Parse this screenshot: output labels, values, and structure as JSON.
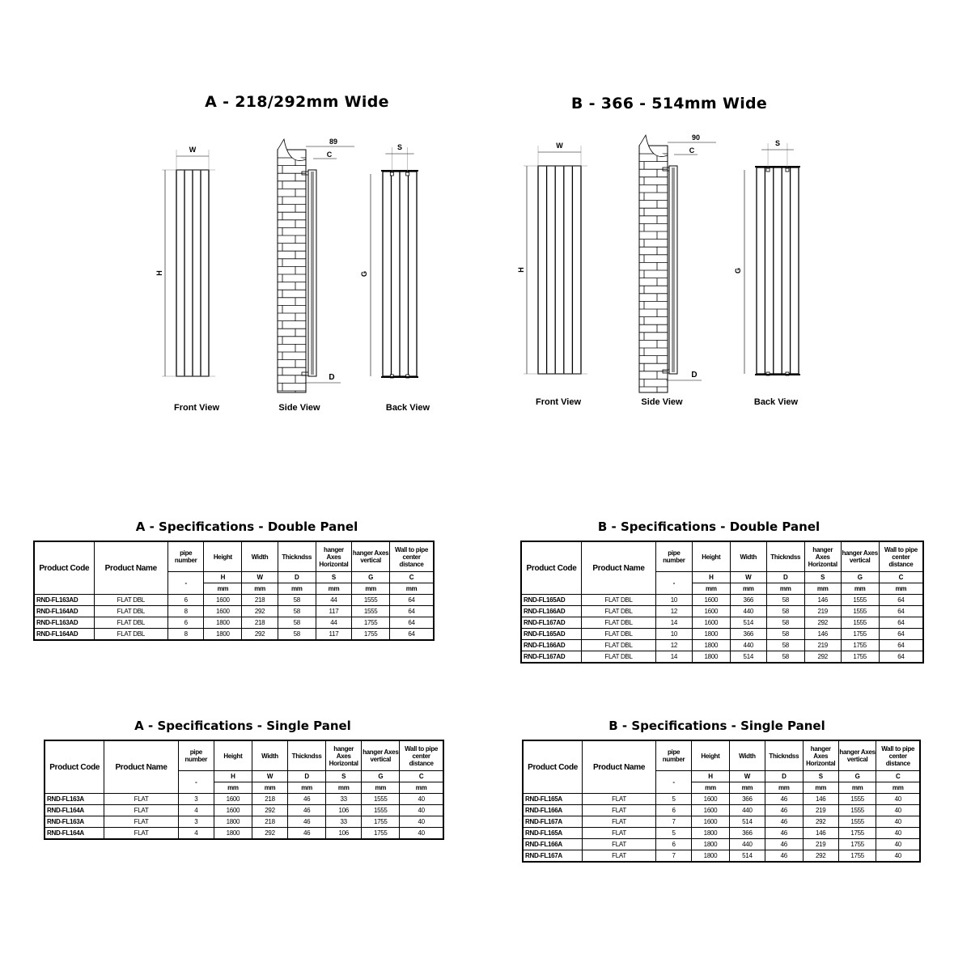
{
  "sections": [
    {
      "title": "A - 218/292mm Wide",
      "views": {
        "front": "Front View",
        "side": "Side View",
        "back": "Back View"
      },
      "dims": {
        "w": "W",
        "h": "H",
        "g": "G",
        "s": "S",
        "c": "C",
        "d": "D",
        "offset": "89"
      },
      "front_panels": 4
    },
    {
      "title": "B - 366 - 514mm Wide",
      "views": {
        "front": "Front View",
        "side": "Side View",
        "back": "Back View"
      },
      "dims": {
        "w": "W",
        "h": "H",
        "g": "G",
        "s": "S",
        "c": "C",
        "d": "D",
        "offset": "90"
      },
      "front_panels": 5
    }
  ],
  "table_header": {
    "columns": [
      "Product Code",
      "Product Name",
      "pipe number",
      "Height",
      "Width",
      "Thickndss",
      "hanger Axes Horizontal",
      "hanger Axes vertical",
      "Wall to pipe center distance"
    ],
    "symbols": [
      "-",
      "H",
      "W",
      "D",
      "S",
      "G",
      "C"
    ],
    "units": [
      "mm",
      "mm",
      "mm",
      "mm",
      "mm",
      "mm"
    ]
  },
  "tables": [
    {
      "title": "A - Specifications - Double Panel",
      "rows": [
        [
          "RND-FL163AD",
          "FLAT DBL",
          "6",
          "1600",
          "218",
          "58",
          "44",
          "1555",
          "64"
        ],
        [
          "RND-FL164AD",
          "FLAT DBL",
          "8",
          "1600",
          "292",
          "58",
          "117",
          "1555",
          "64"
        ],
        [
          "RND-FL163AD",
          "FLAT DBL",
          "6",
          "1800",
          "218",
          "58",
          "44",
          "1755",
          "64"
        ],
        [
          "RND-FL164AD",
          "FLAT DBL",
          "8",
          "1800",
          "292",
          "58",
          "117",
          "1755",
          "64"
        ]
      ]
    },
    {
      "title": "B - Specifications - Double Panel",
      "rows": [
        [
          "RND-FL165AD",
          "FLAT DBL",
          "10",
          "1600",
          "366",
          "58",
          "146",
          "1555",
          "64"
        ],
        [
          "RND-FL166AD",
          "FLAT DBL",
          "12",
          "1600",
          "440",
          "58",
          "219",
          "1555",
          "64"
        ],
        [
          "RND-FL167AD",
          "FLAT DBL",
          "14",
          "1600",
          "514",
          "58",
          "292",
          "1555",
          "64"
        ],
        [
          "RND-FL165AD",
          "FLAT DBL",
          "10",
          "1800",
          "366",
          "58",
          "146",
          "1755",
          "64"
        ],
        [
          "RND-FL166AD",
          "FLAT DBL",
          "12",
          "1800",
          "440",
          "58",
          "219",
          "1755",
          "64"
        ],
        [
          "RND-FL167AD",
          "FLAT DBL",
          "14",
          "1800",
          "514",
          "58",
          "292",
          "1755",
          "64"
        ]
      ]
    },
    {
      "title": "A - Specifications - Single Panel",
      "rows": [
        [
          "RND-FL163A",
          "FLAT",
          "3",
          "1600",
          "218",
          "46",
          "33",
          "1555",
          "40"
        ],
        [
          "RND-FL164A",
          "FLAT",
          "4",
          "1600",
          "292",
          "46",
          "106",
          "1555",
          "40"
        ],
        [
          "RND-FL163A",
          "FLAT",
          "3",
          "1800",
          "218",
          "46",
          "33",
          "1755",
          "40"
        ],
        [
          "RND-FL164A",
          "FLAT",
          "4",
          "1800",
          "292",
          "46",
          "106",
          "1755",
          "40"
        ]
      ]
    },
    {
      "title": "B - Specifications - Single Panel",
      "rows": [
        [
          "RND-FL165A",
          "FLAT",
          "5",
          "1600",
          "366",
          "46",
          "146",
          "1555",
          "40"
        ],
        [
          "RND-FL166A",
          "FLAT",
          "6",
          "1600",
          "440",
          "46",
          "219",
          "1555",
          "40"
        ],
        [
          "RND-FL167A",
          "FLAT",
          "7",
          "1600",
          "514",
          "46",
          "292",
          "1555",
          "40"
        ],
        [
          "RND-FL165A",
          "FLAT",
          "5",
          "1800",
          "366",
          "46",
          "146",
          "1755",
          "40"
        ],
        [
          "RND-FL166A",
          "FLAT",
          "6",
          "1800",
          "440",
          "46",
          "219",
          "1755",
          "40"
        ],
        [
          "RND-FL167A",
          "FLAT",
          "7",
          "1800",
          "514",
          "46",
          "292",
          "1755",
          "40"
        ]
      ]
    }
  ]
}
